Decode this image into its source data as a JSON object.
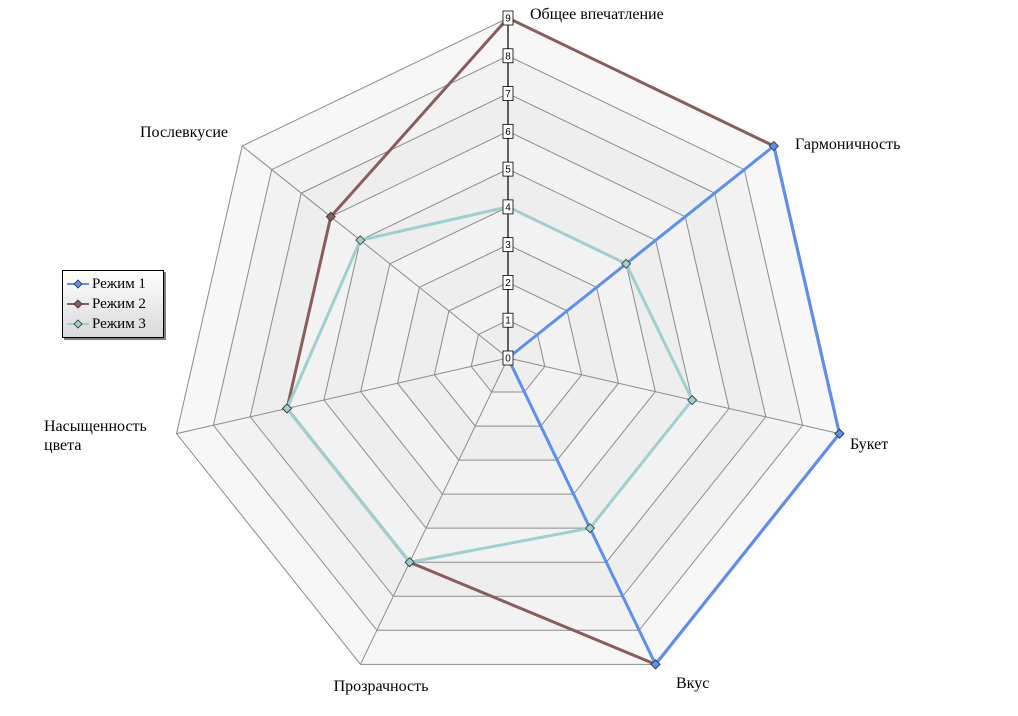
{
  "chart_data": {
    "type": "radar",
    "axes": [
      "Общее впечатление",
      "Гармоничность",
      "Букет",
      "Вкус",
      "Прозрачность",
      "Насыщенность\nцвета",
      "Послевкусие"
    ],
    "rlim": [
      0,
      9
    ],
    "ticks": [
      "0",
      "1",
      "2",
      "3",
      "4",
      "5",
      "6",
      "7",
      "8",
      "9"
    ],
    "grid": true,
    "legend_position": "left",
    "series": [
      {
        "name": "Режим 1",
        "color": "#5b8ff0",
        "values": [
          0,
          9,
          9,
          9,
          0,
          0,
          0
        ]
      },
      {
        "name": "Режим 2",
        "color": "#8a5c5c",
        "values": [
          9,
          9,
          9,
          9,
          6,
          6,
          6
        ]
      },
      {
        "name": "Режим 3",
        "color": "#9fcfcf",
        "values": [
          4,
          4,
          5,
          5,
          6,
          6,
          5
        ]
      }
    ]
  }
}
